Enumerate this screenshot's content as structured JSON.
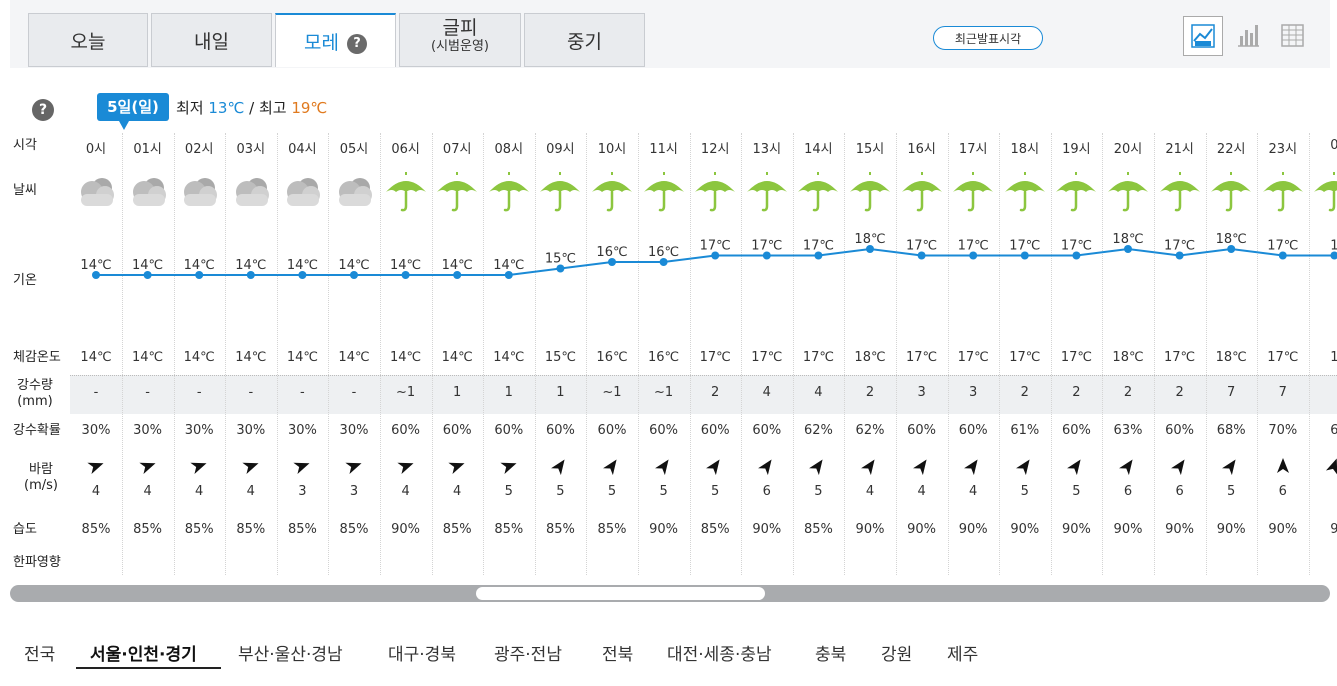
{
  "tabs": [
    {
      "label": "오늘",
      "active": false
    },
    {
      "label": "내일",
      "active": false
    },
    {
      "label": "모레",
      "active": true,
      "help": "?"
    },
    {
      "label": "글피",
      "sub": "(시범운영)",
      "active": false
    },
    {
      "label": "중기",
      "active": false
    }
  ],
  "recent_button": "최근발표시각",
  "view_icons": [
    "line-chart-icon",
    "bar-chart-icon",
    "table-icon"
  ],
  "date_badge": "5일(일)",
  "minmax": {
    "min_label": "최저",
    "min": "13℃",
    "sep": "/",
    "max_label": "최고",
    "max": "19℃"
  },
  "help2": "?",
  "row_labels": {
    "time": "시각",
    "weather": "날씨",
    "temp": "기온",
    "feel": "체감온도",
    "precip": "강수량",
    "precip_unit": "(mm)",
    "prob": "강수확률",
    "wind": "바람",
    "wind_unit": "(m/s)",
    "humid": "습도",
    "cold": "한파영향"
  },
  "hours": [
    "0시",
    "01시",
    "02시",
    "03시",
    "04시",
    "05시",
    "06시",
    "07시",
    "08시",
    "09시",
    "10시",
    "11시",
    "12시",
    "13시",
    "14시",
    "15시",
    "16시",
    "17시",
    "18시",
    "19시",
    "20시",
    "21시",
    "22시",
    "23시",
    "0"
  ],
  "weather": [
    "cloud",
    "cloud",
    "cloud",
    "cloud",
    "cloud",
    "cloud",
    "umbrella",
    "umbrella",
    "umbrella",
    "umbrella",
    "umbrella",
    "umbrella",
    "umbrella",
    "umbrella",
    "umbrella",
    "umbrella",
    "umbrella",
    "umbrella",
    "umbrella",
    "umbrella",
    "umbrella",
    "umbrella",
    "umbrella",
    "umbrella",
    "umbrella"
  ],
  "temps": [
    14,
    14,
    14,
    14,
    14,
    14,
    14,
    14,
    14,
    15,
    16,
    16,
    17,
    17,
    17,
    18,
    17,
    17,
    17,
    17,
    18,
    17,
    18,
    17,
    17
  ],
  "temp_labels": [
    "14℃",
    "14℃",
    "14℃",
    "14℃",
    "14℃",
    "14℃",
    "14℃",
    "14℃",
    "14℃",
    "15℃",
    "16℃",
    "16℃",
    "17℃",
    "17℃",
    "17℃",
    "18℃",
    "17℃",
    "17℃",
    "17℃",
    "17℃",
    "18℃",
    "17℃",
    "18℃",
    "17℃",
    "1"
  ],
  "feels": [
    "14℃",
    "14℃",
    "14℃",
    "14℃",
    "14℃",
    "14℃",
    "14℃",
    "14℃",
    "14℃",
    "15℃",
    "16℃",
    "16℃",
    "17℃",
    "17℃",
    "17℃",
    "18℃",
    "17℃",
    "17℃",
    "17℃",
    "17℃",
    "18℃",
    "17℃",
    "18℃",
    "17℃",
    "1"
  ],
  "precip": [
    "-",
    "-",
    "-",
    "-",
    "-",
    "-",
    "~1",
    "1",
    "1",
    "1",
    "~1",
    "~1",
    "2",
    "4",
    "4",
    "2",
    "3",
    "3",
    "2",
    "2",
    "2",
    "2",
    "7",
    "7",
    ""
  ],
  "prob": [
    "30%",
    "30%",
    "30%",
    "30%",
    "30%",
    "30%",
    "60%",
    "60%",
    "60%",
    "60%",
    "60%",
    "60%",
    "60%",
    "60%",
    "62%",
    "62%",
    "60%",
    "60%",
    "61%",
    "60%",
    "63%",
    "60%",
    "68%",
    "70%",
    "6"
  ],
  "wind_dir": [
    250,
    250,
    250,
    250,
    250,
    250,
    250,
    250,
    250,
    215,
    215,
    215,
    215,
    215,
    215,
    215,
    215,
    215,
    215,
    215,
    215,
    215,
    215,
    180,
    200
  ],
  "wind_speed": [
    "4",
    "4",
    "4",
    "4",
    "3",
    "3",
    "4",
    "4",
    "5",
    "5",
    "5",
    "5",
    "5",
    "6",
    "5",
    "4",
    "4",
    "4",
    "5",
    "5",
    "6",
    "6",
    "5",
    "6",
    ""
  ],
  "humid": [
    "85%",
    "85%",
    "85%",
    "85%",
    "85%",
    "85%",
    "90%",
    "85%",
    "85%",
    "85%",
    "85%",
    "90%",
    "85%",
    "90%",
    "85%",
    "90%",
    "90%",
    "90%",
    "90%",
    "90%",
    "90%",
    "90%",
    "90%",
    "90%",
    "9"
  ],
  "regions": [
    {
      "label": "전국"
    },
    {
      "label": "서울·인천·경기",
      "active": true
    },
    {
      "label": "부산·울산·경남"
    },
    {
      "label": "대구·경북"
    },
    {
      "label": "광주·전남"
    },
    {
      "label": "전북"
    },
    {
      "label": "대전·세종·충남"
    },
    {
      "label": "충북"
    },
    {
      "label": "강원"
    },
    {
      "label": "제주"
    }
  ],
  "colors": {
    "accent": "#1a8ad6",
    "umbrella": "#8cc63f",
    "cloud": "#c8c8c8",
    "max": "#e07a1f"
  }
}
